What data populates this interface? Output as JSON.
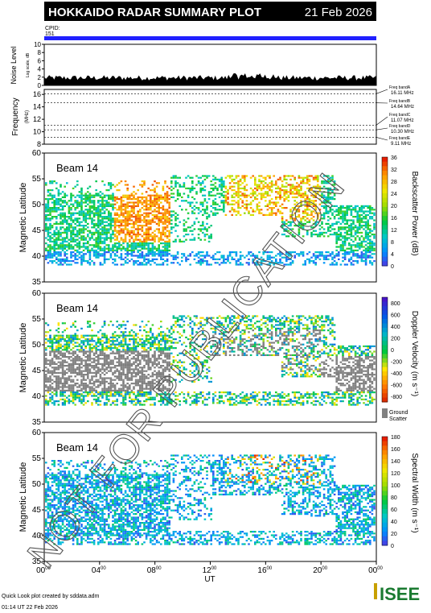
{
  "header": {
    "title": "HOKKAIDO RADAR SUMMARY PLOT",
    "date": "21 Feb 2026",
    "cpid_label": "CPID:",
    "cpid_value": "151"
  },
  "colors": {
    "header_bg": "#000000",
    "header_text": "#ffffff",
    "cpid_bar": "#2020ff",
    "ground_scatter": "#808080"
  },
  "noise_panel": {
    "ylabel": "Noise Level",
    "ylabel_sub": "Log scale, dB",
    "ticks": [
      "0",
      "2",
      "4",
      "6",
      "8",
      "10"
    ]
  },
  "freq_panel": {
    "ylabel": "Frequency",
    "unit": "(MHz)",
    "ticks": [
      "8",
      "10",
      "12",
      "14",
      "16"
    ],
    "bands": [
      {
        "label": "Freq bandA",
        "value": "16.11 MHz"
      },
      {
        "label": "Freq bandB",
        "value": "14.64 MHz"
      },
      {
        "label": "Freq bandC",
        "value": "11.07 MHz"
      },
      {
        "label": "Freq bandD",
        "value": "10.30 MHz"
      },
      {
        "label": "Freq bandE",
        "value": "9.11 MHz"
      }
    ]
  },
  "beam_label": "Beam 14",
  "lat_label": "Magnetic Latitude",
  "lat_ticks": [
    "35",
    "40",
    "45",
    "50",
    "55",
    "60"
  ],
  "power_scale": {
    "label": "Backscatter Power (dB)",
    "ticks": [
      "0",
      "4",
      "8",
      "12",
      "16",
      "20",
      "24",
      "28",
      "32",
      "36"
    ]
  },
  "velocity_scale": {
    "label": "Doppler Velocity (m s⁻¹)",
    "ticks": [
      "-800",
      "-600",
      "-400",
      "-200",
      "0",
      "200",
      "400",
      "600",
      "800"
    ],
    "ground_label_1": "Ground",
    "ground_label_2": "Scatter"
  },
  "width_scale": {
    "label": "Spectral Width (m s⁻¹)",
    "ticks": [
      "0",
      "20",
      "40",
      "60",
      "80",
      "100",
      "120",
      "140",
      "160",
      "180"
    ]
  },
  "time_axis": {
    "ticks": [
      {
        "base": "00",
        "sup": "00"
      },
      {
        "base": "04",
        "sup": "00"
      },
      {
        "base": "08",
        "sup": "00"
      },
      {
        "base": "12",
        "sup": "00"
      },
      {
        "base": "16",
        "sup": "00"
      },
      {
        "base": "20",
        "sup": "00"
      },
      {
        "base": "00",
        "sup": "00"
      }
    ],
    "label": "UT"
  },
  "watermark": "NOT FOR PUBLICATION",
  "footer": {
    "line1": "Quick Look plot created by sddata.adm",
    "line2": "01:14 UT 22 Feb 2026"
  },
  "logo_text": "ISEE",
  "chart_data": [
    {
      "type": "area",
      "title": "Noise Level",
      "x_range": [
        "00:00",
        "24:00"
      ],
      "ylim": [
        0,
        10
      ],
      "approx_level": 2
    },
    {
      "type": "line",
      "title": "Frequency",
      "x_range": [
        "00:00",
        "24:00"
      ],
      "ylim": [
        8,
        16
      ],
      "bands_mhz": [
        16.11,
        14.64,
        11.07,
        10.3,
        9.11
      ]
    },
    {
      "type": "heatmap",
      "title": "Backscatter Power (dB)",
      "x_range": [
        "00:00",
        "24:00"
      ],
      "ylim": [
        35,
        60
      ],
      "zlim": [
        0,
        36
      ]
    },
    {
      "type": "heatmap",
      "title": "Doppler Velocity (m s-1)",
      "x_range": [
        "00:00",
        "24:00"
      ],
      "ylim": [
        35,
        60
      ],
      "zlim": [
        -800,
        800
      ]
    },
    {
      "type": "heatmap",
      "title": "Spectral Width (m s-1)",
      "x_range": [
        "00:00",
        "24:00"
      ],
      "ylim": [
        35,
        60
      ],
      "zlim": [
        0,
        180
      ]
    }
  ]
}
